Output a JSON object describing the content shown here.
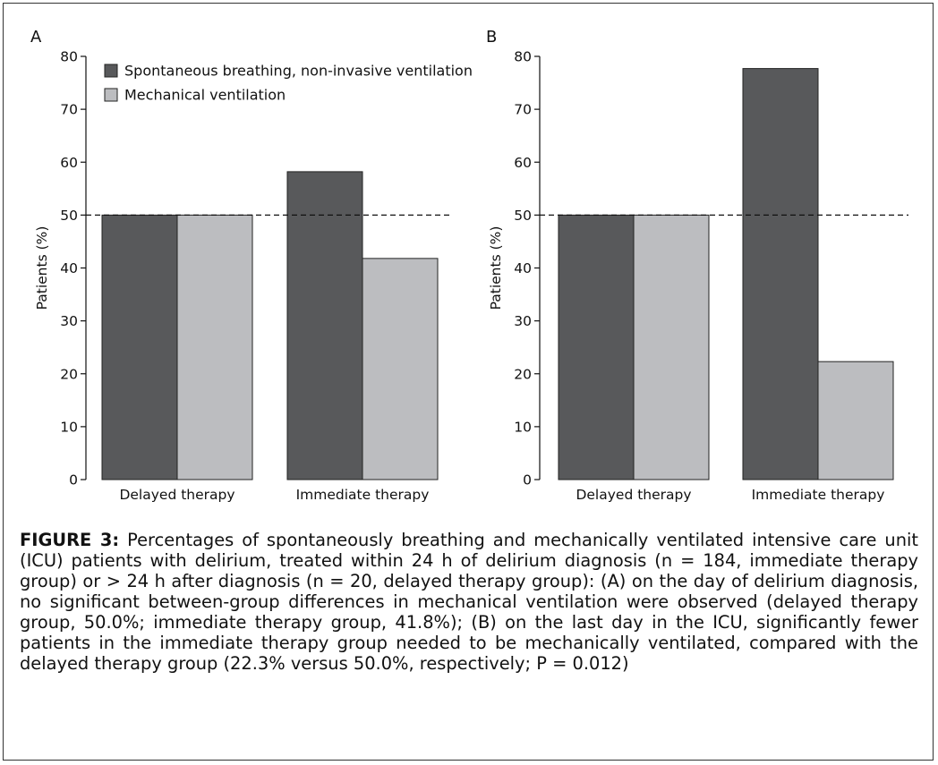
{
  "colors": {
    "series_dark": "#58595b",
    "series_light": "#bcbdc0",
    "axis": "#111111"
  },
  "chart_data": [
    {
      "type": "bar",
      "panel_label": "A",
      "categories": [
        "Delayed therapy",
        "Immediate therapy"
      ],
      "series": [
        {
          "name": "Spontaneous breathing, non-invasive ventilation",
          "values": [
            50.0,
            58.2
          ]
        },
        {
          "name": "Mechanical ventilation",
          "values": [
            50.0,
            41.8
          ]
        }
      ],
      "ylabel": "Patients (%)",
      "xlabel": "",
      "ylim": [
        0,
        80
      ],
      "yticks": [
        0,
        10,
        20,
        30,
        40,
        50,
        60,
        70,
        80
      ],
      "reference_line": 50,
      "legend": "top-left",
      "grid": false
    },
    {
      "type": "bar",
      "panel_label": "B",
      "categories": [
        "Delayed therapy",
        "Immediate therapy"
      ],
      "series": [
        {
          "name": "Spontaneous breathing, non-invasive ventilation",
          "values": [
            50.0,
            77.7
          ]
        },
        {
          "name": "Mechanical ventilation",
          "values": [
            50.0,
            22.3
          ]
        }
      ],
      "ylabel": "Patients (%)",
      "xlabel": "",
      "ylim": [
        0,
        80
      ],
      "yticks": [
        0,
        10,
        20,
        30,
        40,
        50,
        60,
        70,
        80
      ],
      "reference_line": 50,
      "legend": "none",
      "grid": false
    }
  ],
  "caption": {
    "label": "FIGURE 3:",
    "text": "Percentages of spontaneously breathing and mechanically ventilated intensive care unit (ICU) patients with delirium, treated within 24 h of delirium diagnosis (n = 184, immediate therapy group) or > 24 h after diagnosis (n = 20, delayed therapy group): (A) on the day of delirium diagnosis, no significant between-group differences in mechanical ventilation were observed (delayed therapy group, 50.0%; immediate therapy group, 41.8%); (B) on the last day in the ICU, significantly fewer patients in the immediate therapy group needed to be mechanically ventilated, compared with the delayed therapy group (22.3% versus 50.0%, respectively; P = 0.012)"
  }
}
